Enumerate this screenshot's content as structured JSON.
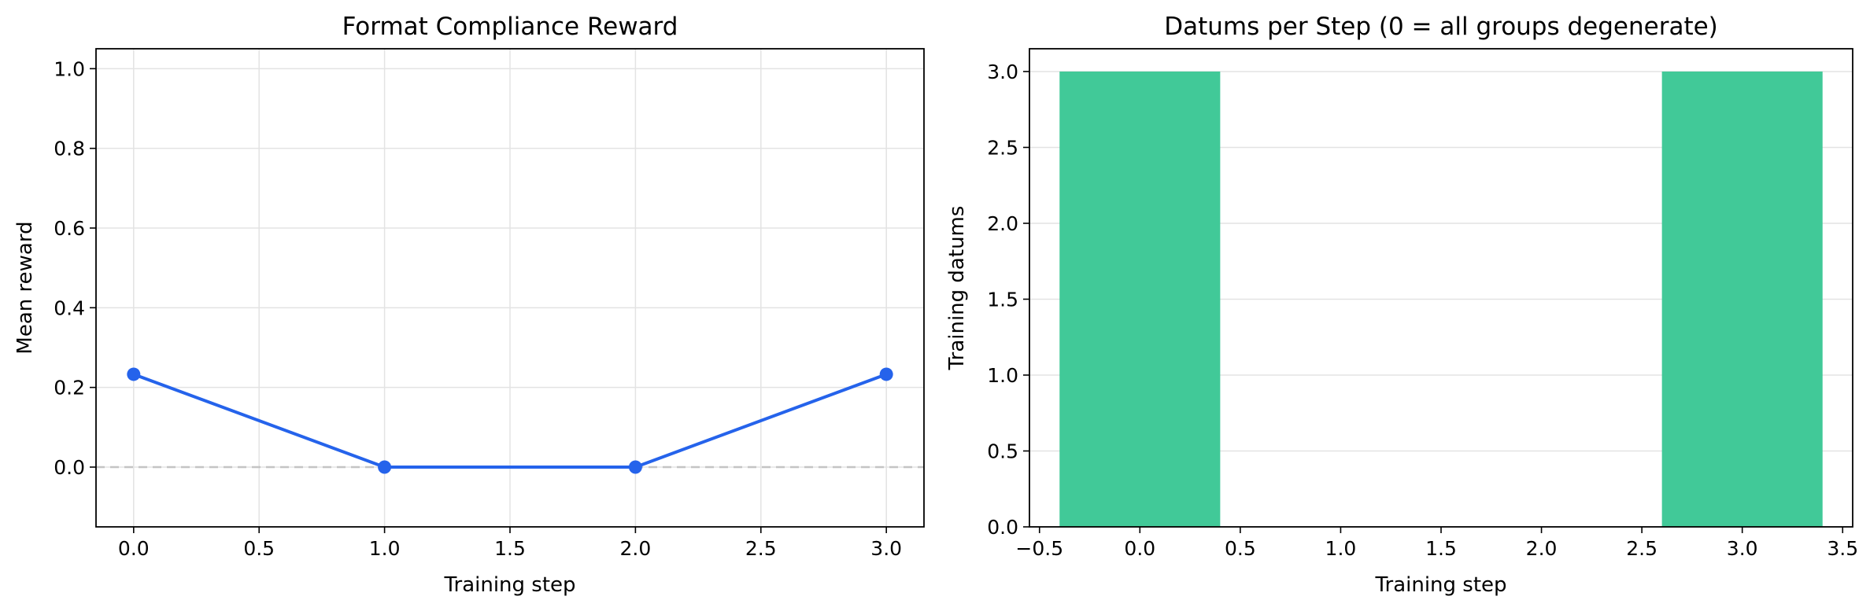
{
  "chart_data": [
    {
      "type": "line",
      "title": "Format Compliance Reward",
      "xlabel": "Training step",
      "ylabel": "Mean reward",
      "xlim": [
        -0.15,
        3.15
      ],
      "ylim": [
        -0.15,
        1.05
      ],
      "xticks": [
        0.0,
        0.5,
        1.0,
        1.5,
        2.0,
        2.5,
        3.0
      ],
      "xtick_labels": [
        "0.0",
        "0.5",
        "1.0",
        "1.5",
        "2.0",
        "2.5",
        "3.0"
      ],
      "yticks": [
        0.0,
        0.2,
        0.4,
        0.6,
        0.8,
        1.0
      ],
      "ytick_labels": [
        "0.0",
        "0.2",
        "0.4",
        "0.6",
        "0.8",
        "1.0"
      ],
      "grid": true,
      "reference_line_y": 0,
      "series": [
        {
          "x": [
            0,
            1,
            2,
            3
          ],
          "values": [
            0.233,
            0.0,
            0.0,
            0.233
          ],
          "color": "#2563eb"
        }
      ]
    },
    {
      "type": "bar",
      "title": "Datums per Step (0 = all groups degenerate)",
      "xlabel": "Training step",
      "ylabel": "Training datums",
      "xlim": [
        -0.55,
        3.55
      ],
      "ylim": [
        0,
        3.15
      ],
      "xticks": [
        -0.5,
        0.0,
        0.5,
        1.0,
        1.5,
        2.0,
        2.5,
        3.0,
        3.5
      ],
      "xtick_labels": [
        "−0.5",
        "0.0",
        "0.5",
        "1.0",
        "1.5",
        "2.0",
        "2.5",
        "3.0",
        "3.5"
      ],
      "yticks": [
        0.0,
        0.5,
        1.0,
        1.5,
        2.0,
        2.5,
        3.0
      ],
      "ytick_labels": [
        "0.0",
        "0.5",
        "1.0",
        "1.5",
        "2.0",
        "2.5",
        "3.0"
      ],
      "grid": true,
      "categories": [
        0,
        1,
        2,
        3
      ],
      "values": [
        3,
        0,
        0,
        3
      ],
      "bar_width": 0.8,
      "color": "#41c998"
    }
  ]
}
